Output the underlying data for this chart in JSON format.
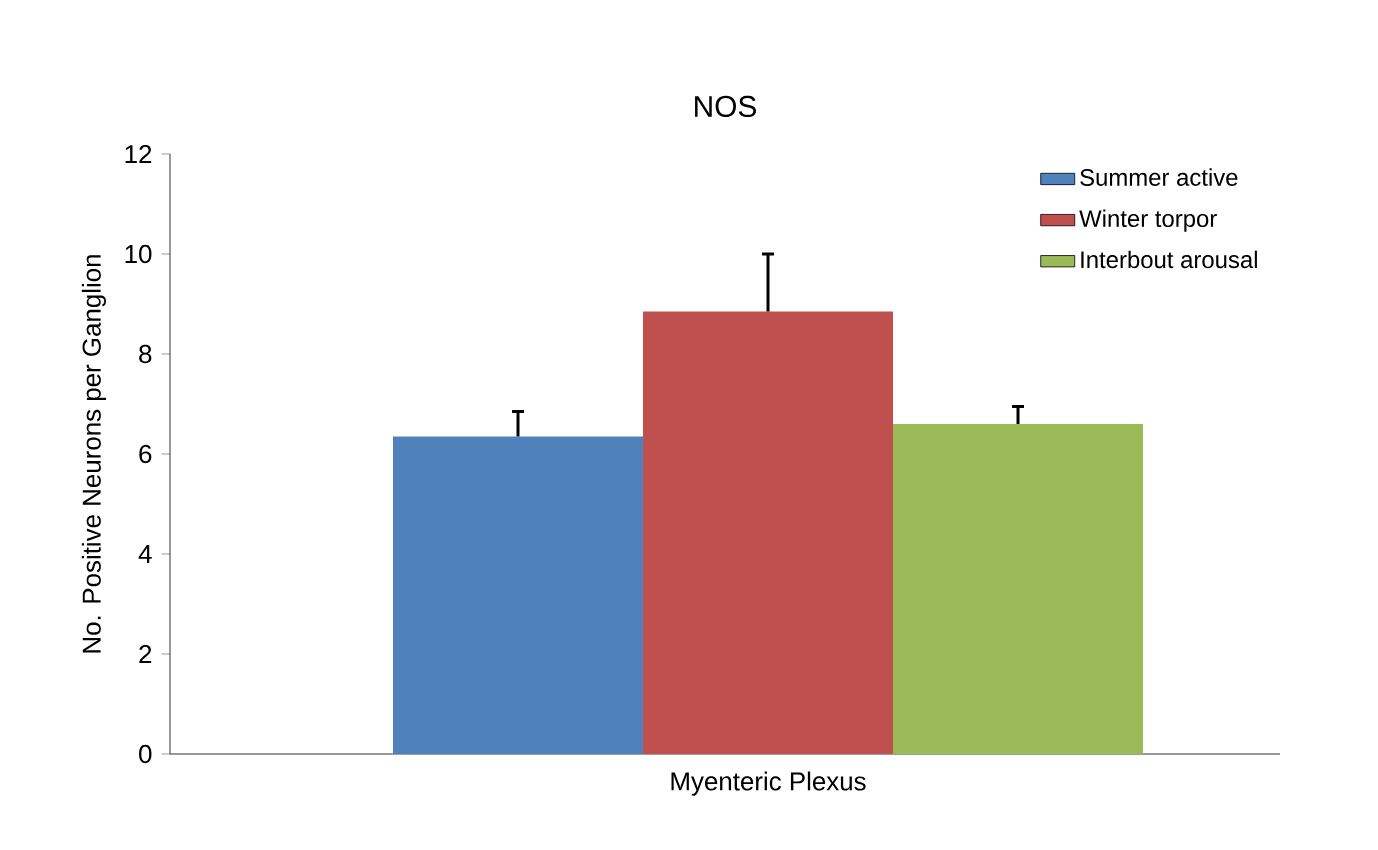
{
  "chart_data": {
    "type": "bar",
    "title": "NOS",
    "ylabel": "No. Positive Neurons per Ganglion",
    "categories": [
      "Myenteric Plexus"
    ],
    "series": [
      {
        "name": "Summer active",
        "color": "#4f81bd",
        "values": [
          6.35
        ],
        "errors": [
          [
            6.35,
            6.85
          ]
        ]
      },
      {
        "name": "Winter torpor",
        "color": "#c0504d",
        "values": [
          8.85
        ],
        "errors": [
          [
            8.85,
            10.0
          ]
        ]
      },
      {
        "name": "Interbout arousal",
        "color": "#9bbb59",
        "values": [
          6.6
        ],
        "errors": [
          [
            6.6,
            6.95
          ]
        ]
      }
    ],
    "ylim": [
      0,
      12
    ],
    "yticks": [
      0,
      2,
      4,
      6,
      8,
      10,
      12
    ],
    "grid": false,
    "legend": "top right"
  }
}
